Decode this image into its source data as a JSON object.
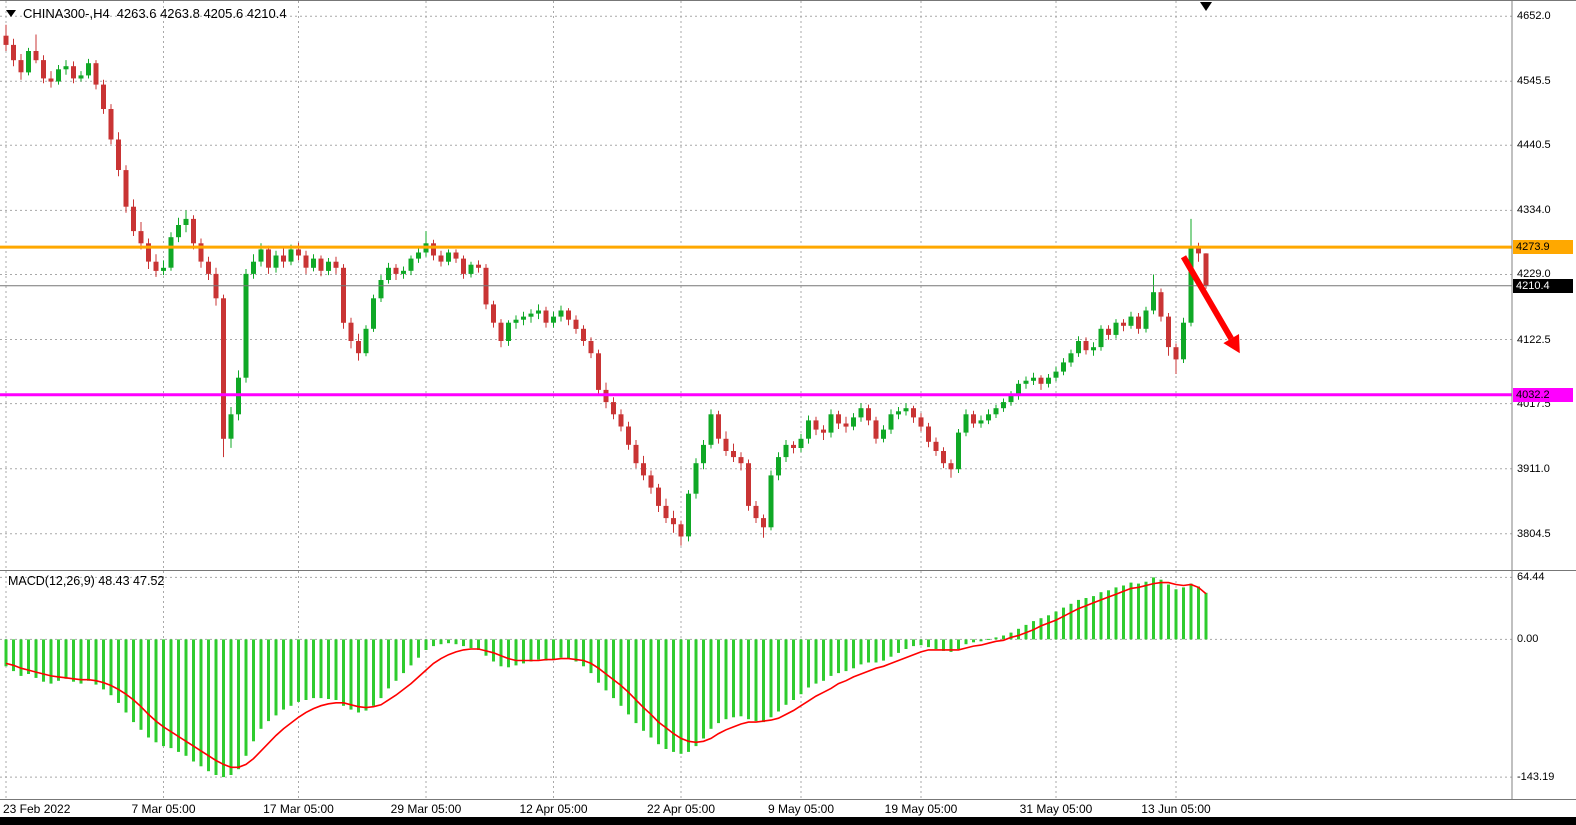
{
  "header": {
    "symbol_period": "CHINA300-,H4",
    "ohlc_text": "4263.6 4263.8 4205.6 4210.4"
  },
  "macd_panel": {
    "label": "MACD(12,26,9) 48.43 47.52"
  },
  "colors": {
    "candle_up": "#0FA826",
    "candle_down": "#C93434",
    "histogram": "#2ECC2E",
    "signal": "#FF0000",
    "grid": "#A8A8A8",
    "separator": "#808080",
    "current_price_line": "#777777",
    "axis_text": "#000000",
    "bottom_bar": "#000000"
  },
  "chart_data": {
    "type": "candlestick",
    "symbol": "CHINA300-",
    "timeframe": "H4",
    "last_ohlc": {
      "open": 4263.6,
      "high": 4263.8,
      "low": 4205.6,
      "close": 4210.4
    },
    "shift_marker_index": 160,
    "price_axis_ticks": [
      {
        "value": 4652.0,
        "label": "4652.0"
      },
      {
        "value": 4545.5,
        "label": "4545.5"
      },
      {
        "value": 4440.5,
        "label": "4440.5"
      },
      {
        "value": 4334.0,
        "label": "4334.0"
      },
      {
        "value": 4229.0,
        "label": "4229.0"
      },
      {
        "value": 4122.5,
        "label": "4122.5"
      },
      {
        "value": 4017.5,
        "label": "4017.5"
      },
      {
        "value": 3911.0,
        "label": "3911.0"
      },
      {
        "value": 3804.5,
        "label": "3804.5"
      }
    ],
    "time_ticks": [
      {
        "index": 0,
        "label": "23 Feb 2022"
      },
      {
        "index": 21,
        "label": "7 Mar 05:00"
      },
      {
        "index": 39,
        "label": "17 Mar 05:00"
      },
      {
        "index": 56,
        "label": "29 Mar 05:00"
      },
      {
        "index": 73,
        "label": "12 Apr 05:00"
      },
      {
        "index": 90,
        "label": "22 Apr 05:00"
      },
      {
        "index": 106,
        "label": "9 May 05:00"
      },
      {
        "index": 122,
        "label": "19 May 05:00"
      },
      {
        "index": 140,
        "label": "31 May 05:00"
      },
      {
        "index": 156,
        "label": "13 Jun 05:00"
      }
    ],
    "hlines": [
      {
        "name": "resistance-line",
        "price": 4273.9,
        "label": "4273.9",
        "color": "#FFA800",
        "text_color": "#000000"
      },
      {
        "name": "support-line",
        "price": 4032.2,
        "label": "4032.2",
        "color": "#FF00FF",
        "text_color": "#000000"
      }
    ],
    "price_marker": {
      "price": 4210.4,
      "label": "4210.4"
    },
    "annotation_arrow": {
      "from_index": 157,
      "from_price": 4258,
      "to_index": 164.5,
      "to_price": 4100,
      "color": "#FF0000"
    },
    "candles": [
      [
        4620,
        4638,
        4595,
        4605
      ],
      [
        4605,
        4615,
        4570,
        4580
      ],
      [
        4580,
        4590,
        4548,
        4560
      ],
      [
        4560,
        4600,
        4555,
        4595
      ],
      [
        4595,
        4622,
        4575,
        4580
      ],
      [
        4580,
        4588,
        4542,
        4550
      ],
      [
        4550,
        4562,
        4535,
        4545
      ],
      [
        4545,
        4572,
        4540,
        4565
      ],
      [
        4565,
        4580,
        4556,
        4570
      ],
      [
        4570,
        4578,
        4542,
        4550
      ],
      [
        4550,
        4562,
        4545,
        4555
      ],
      [
        4555,
        4582,
        4550,
        4575
      ],
      [
        4575,
        4580,
        4532,
        4540
      ],
      [
        4540,
        4548,
        4492,
        4500
      ],
      [
        4500,
        4508,
        4442,
        4450
      ],
      [
        4450,
        4462,
        4390,
        4400
      ],
      [
        4400,
        4408,
        4330,
        4340
      ],
      [
        4340,
        4352,
        4292,
        4300
      ],
      [
        4300,
        4315,
        4270,
        4280
      ],
      [
        4280,
        4288,
        4238,
        4250
      ],
      [
        4250,
        4262,
        4225,
        4235
      ],
      [
        4235,
        4252,
        4228,
        4240
      ],
      [
        4240,
        4298,
        4235,
        4290
      ],
      [
        4290,
        4322,
        4282,
        4310
      ],
      [
        4310,
        4334,
        4298,
        4320
      ],
      [
        4320,
        4326,
        4270,
        4280
      ],
      [
        4280,
        4288,
        4240,
        4250
      ],
      [
        4250,
        4258,
        4220,
        4230
      ],
      [
        4230,
        4240,
        4178,
        4190
      ],
      [
        4190,
        4196,
        3930,
        3960
      ],
      [
        3960,
        4012,
        3945,
        4000
      ],
      [
        4000,
        4072,
        3990,
        4060
      ],
      [
        4060,
        4238,
        4052,
        4230
      ],
      [
        4230,
        4262,
        4222,
        4250
      ],
      [
        4250,
        4280,
        4242,
        4270
      ],
      [
        4270,
        4276,
        4230,
        4240
      ],
      [
        4240,
        4268,
        4232,
        4260
      ],
      [
        4260,
        4272,
        4240,
        4250
      ],
      [
        4250,
        4278,
        4244,
        4270
      ],
      [
        4270,
        4281,
        4252,
        4260
      ],
      [
        4260,
        4268,
        4230,
        4240
      ],
      [
        4240,
        4262,
        4234,
        4255
      ],
      [
        4255,
        4260,
        4226,
        4235
      ],
      [
        4235,
        4256,
        4228,
        4250
      ],
      [
        4250,
        4258,
        4230,
        4240
      ],
      [
        4240,
        4246,
        4140,
        4150
      ],
      [
        4150,
        4158,
        4108,
        4120
      ],
      [
        4120,
        4132,
        4088,
        4100
      ],
      [
        4100,
        4146,
        4095,
        4140
      ],
      [
        4140,
        4196,
        4135,
        4190
      ],
      [
        4190,
        4228,
        4184,
        4220
      ],
      [
        4220,
        4248,
        4214,
        4240
      ],
      [
        4240,
        4246,
        4220,
        4230
      ],
      [
        4230,
        4242,
        4222,
        4235
      ],
      [
        4235,
        4260,
        4228,
        4255
      ],
      [
        4255,
        4272,
        4248,
        4265
      ],
      [
        4265,
        4300,
        4258,
        4280
      ],
      [
        4280,
        4286,
        4252,
        4260
      ],
      [
        4260,
        4268,
        4242,
        4250
      ],
      [
        4250,
        4270,
        4244,
        4265
      ],
      [
        4265,
        4270,
        4248,
        4255
      ],
      [
        4255,
        4260,
        4222,
        4230
      ],
      [
        4230,
        4250,
        4224,
        4245
      ],
      [
        4245,
        4252,
        4232,
        4240
      ],
      [
        4240,
        4246,
        4172,
        4180
      ],
      [
        4180,
        4186,
        4142,
        4150
      ],
      [
        4150,
        4156,
        4110,
        4120
      ],
      [
        4120,
        4154,
        4112,
        4150
      ],
      [
        4150,
        4162,
        4140,
        4155
      ],
      [
        4155,
        4168,
        4146,
        4160
      ],
      [
        4160,
        4172,
        4150,
        4165
      ],
      [
        4165,
        4180,
        4156,
        4170
      ],
      [
        4170,
        4176,
        4142,
        4150
      ],
      [
        4150,
        4168,
        4142,
        4160
      ],
      [
        4160,
        4178,
        4152,
        4170
      ],
      [
        4170,
        4174,
        4146,
        4155
      ],
      [
        4155,
        4162,
        4132,
        4140
      ],
      [
        4140,
        4146,
        4112,
        4120
      ],
      [
        4120,
        4126,
        4092,
        4100
      ],
      [
        4100,
        4106,
        4032,
        4040
      ],
      [
        4040,
        4052,
        4010,
        4020
      ],
      [
        4020,
        4028,
        3992,
        4000
      ],
      [
        4000,
        4008,
        3972,
        3980
      ],
      [
        3980,
        3988,
        3942,
        3950
      ],
      [
        3950,
        3958,
        3912,
        3920
      ],
      [
        3920,
        3932,
        3892,
        3900
      ],
      [
        3900,
        3908,
        3870,
        3880
      ],
      [
        3880,
        3886,
        3840,
        3850
      ],
      [
        3850,
        3862,
        3822,
        3830
      ],
      [
        3830,
        3842,
        3806,
        3820
      ],
      [
        3820,
        3826,
        3785,
        3800
      ],
      [
        3800,
        3876,
        3792,
        3870
      ],
      [
        3870,
        3928,
        3862,
        3920
      ],
      [
        3920,
        3958,
        3910,
        3950
      ],
      [
        3950,
        4008,
        3944,
        4000
      ],
      [
        4000,
        4006,
        3952,
        3960
      ],
      [
        3960,
        3972,
        3932,
        3940
      ],
      [
        3940,
        3952,
        3922,
        3930
      ],
      [
        3930,
        3938,
        3908,
        3920
      ],
      [
        3920,
        3926,
        3842,
        3850
      ],
      [
        3850,
        3858,
        3822,
        3830
      ],
      [
        3830,
        3836,
        3798,
        3815
      ],
      [
        3815,
        3908,
        3810,
        3900
      ],
      [
        3900,
        3938,
        3892,
        3930
      ],
      [
        3930,
        3958,
        3922,
        3950
      ],
      [
        3950,
        3956,
        3936,
        3945
      ],
      [
        3945,
        3968,
        3938,
        3960
      ],
      [
        3960,
        3998,
        3952,
        3990
      ],
      [
        3990,
        3996,
        3966,
        3975
      ],
      [
        3975,
        3982,
        3958,
        3970
      ],
      [
        3970,
        4008,
        3962,
        4000
      ],
      [
        4000,
        4006,
        3976,
        3985
      ],
      [
        3985,
        3996,
        3970,
        3980
      ],
      [
        3980,
        4002,
        3974,
        3995
      ],
      [
        3995,
        4018,
        3988,
        4010
      ],
      [
        4010,
        4016,
        3982,
        3990
      ],
      [
        3990,
        3996,
        3952,
        3960
      ],
      [
        3960,
        3982,
        3954,
        3975
      ],
      [
        3975,
        4008,
        3968,
        4000
      ],
      [
        4000,
        4012,
        3992,
        4005
      ],
      [
        4005,
        4018,
        3998,
        4010
      ],
      [
        4010,
        4014,
        3986,
        3995
      ],
      [
        3995,
        4002,
        3972,
        3980
      ],
      [
        3980,
        3986,
        3946,
        3955
      ],
      [
        3955,
        3962,
        3932,
        3940
      ],
      [
        3940,
        3946,
        3912,
        3920
      ],
      [
        3920,
        3926,
        3896,
        3910
      ],
      [
        3910,
        3976,
        3904,
        3970
      ],
      [
        3970,
        4008,
        3964,
        4000
      ],
      [
        4000,
        4006,
        3978,
        3985
      ],
      [
        3985,
        3998,
        3978,
        3990
      ],
      [
        3990,
        4008,
        3984,
        4000
      ],
      [
        4000,
        4016,
        3994,
        4010
      ],
      [
        4010,
        4026,
        4004,
        4020
      ],
      [
        4020,
        4038,
        4014,
        4030
      ],
      [
        4030,
        4056,
        4024,
        4050
      ],
      [
        4050,
        4062,
        4042,
        4055
      ],
      [
        4055,
        4068,
        4048,
        4060
      ],
      [
        4060,
        4064,
        4040,
        4050
      ],
      [
        4050,
        4066,
        4044,
        4060
      ],
      [
        4060,
        4078,
        4054,
        4070
      ],
      [
        4070,
        4092,
        4064,
        4085
      ],
      [
        4085,
        4106,
        4078,
        4100
      ],
      [
        4100,
        4128,
        4094,
        4120
      ],
      [
        4120,
        4126,
        4098,
        4105
      ],
      [
        4105,
        4118,
        4096,
        4110
      ],
      [
        4110,
        4146,
        4104,
        4140
      ],
      [
        4140,
        4146,
        4122,
        4130
      ],
      [
        4130,
        4156,
        4124,
        4150
      ],
      [
        4150,
        4156,
        4136,
        4145
      ],
      [
        4145,
        4168,
        4140,
        4160
      ],
      [
        4160,
        4166,
        4132,
        4140
      ],
      [
        4140,
        4176,
        4134,
        4170
      ],
      [
        4170,
        4229,
        4164,
        4200
      ],
      [
        4200,
        4206,
        4152,
        4160
      ],
      [
        4160,
        4166,
        4096,
        4110
      ],
      [
        4110,
        4116,
        4066,
        4090
      ],
      [
        4090,
        4158,
        4084,
        4150
      ],
      [
        4150,
        4320,
        4144,
        4275
      ],
      [
        4275,
        4281,
        4250,
        4263.6
      ],
      [
        4263.6,
        4263.8,
        4205.6,
        4210.4
      ]
    ],
    "macd": {
      "type": "histogram+line",
      "params": [
        12,
        26,
        9
      ],
      "main_last": 48.43,
      "signal_last": 47.52,
      "axis_ticks": [
        {
          "value": 64.44,
          "label": "64.44"
        },
        {
          "value": 0,
          "label": "0.00"
        },
        {
          "value": -143.19,
          "label": "-143.19"
        }
      ],
      "histogram": [
        -28,
        -33,
        -38,
        -36,
        -40,
        -44,
        -46,
        -43,
        -41,
        -44,
        -46,
        -43,
        -47,
        -52,
        -58,
        -66,
        -76,
        -86,
        -94,
        -102,
        -107,
        -111,
        -113,
        -117,
        -121,
        -127,
        -132,
        -137,
        -141,
        -143.19,
        -141,
        -135,
        -121,
        -106,
        -93,
        -85,
        -79,
        -73,
        -69,
        -65,
        -63,
        -61,
        -61,
        -62,
        -63,
        -69,
        -73,
        -76,
        -74,
        -69,
        -61,
        -51,
        -43,
        -35,
        -27,
        -19,
        -11,
        -7,
        -5,
        -4,
        -5,
        -7,
        -9,
        -11,
        -17,
        -23,
        -28,
        -29,
        -27,
        -25,
        -23,
        -21,
        -22,
        -21,
        -19,
        -20,
        -23,
        -28,
        -35,
        -45,
        -53,
        -61,
        -69,
        -78,
        -87,
        -95,
        -102,
        -109,
        -114,
        -117,
        -119,
        -117,
        -111,
        -103,
        -93,
        -87,
        -83,
        -81,
        -80,
        -83,
        -85,
        -86,
        -81,
        -75,
        -68,
        -63,
        -57,
        -50,
        -46,
        -43,
        -38,
        -35,
        -33,
        -30,
        -26,
        -24,
        -24,
        -22,
        -18,
        -14,
        -10,
        -7,
        -6,
        -8,
        -10,
        -12,
        -13,
        -10,
        -5,
        -3,
        -2,
        0.5,
        2,
        4,
        7,
        11,
        15,
        19,
        22,
        25,
        29,
        33,
        37,
        41,
        43,
        45,
        49,
        51,
        54,
        56,
        59,
        58,
        60,
        64.44,
        62,
        57,
        52,
        54,
        58,
        55,
        48.43
      ],
      "signal": [
        -25,
        -27,
        -30,
        -32,
        -34,
        -36,
        -38,
        -39,
        -40,
        -41,
        -42,
        -42,
        -43,
        -45,
        -48,
        -52,
        -57,
        -63,
        -70,
        -78,
        -85,
        -91,
        -96,
        -101,
        -106,
        -111,
        -116,
        -121,
        -126,
        -130,
        -133,
        -133,
        -130,
        -124,
        -116,
        -108,
        -100,
        -93,
        -87,
        -81,
        -76,
        -72,
        -69,
        -67,
        -66,
        -66,
        -68,
        -70,
        -71,
        -70,
        -68,
        -63,
        -58,
        -52,
        -46,
        -39,
        -32,
        -25,
        -20,
        -16,
        -13,
        -11,
        -10,
        -10,
        -12,
        -14,
        -17,
        -20,
        -22,
        -22,
        -22,
        -22,
        -21,
        -21,
        -20,
        -20,
        -21,
        -22,
        -25,
        -30,
        -36,
        -42,
        -48,
        -55,
        -63,
        -71,
        -78,
        -86,
        -92,
        -98,
        -103,
        -106,
        -107,
        -106,
        -103,
        -98,
        -94,
        -91,
        -88,
        -86,
        -86,
        -85,
        -84,
        -82,
        -78,
        -74,
        -69,
        -64,
        -59,
        -55,
        -51,
        -46,
        -43,
        -39,
        -36,
        -33,
        -30,
        -28,
        -25,
        -22,
        -19,
        -16,
        -13,
        -11,
        -11,
        -11,
        -11,
        -11,
        -9,
        -7,
        -6,
        -4,
        -2,
        -1,
        2,
        4,
        7,
        10,
        14,
        17,
        20,
        24,
        28,
        32,
        35,
        38,
        41,
        44,
        47,
        50,
        53,
        54,
        56,
        58,
        59,
        59,
        57,
        56,
        57,
        54,
        47.52
      ]
    }
  }
}
